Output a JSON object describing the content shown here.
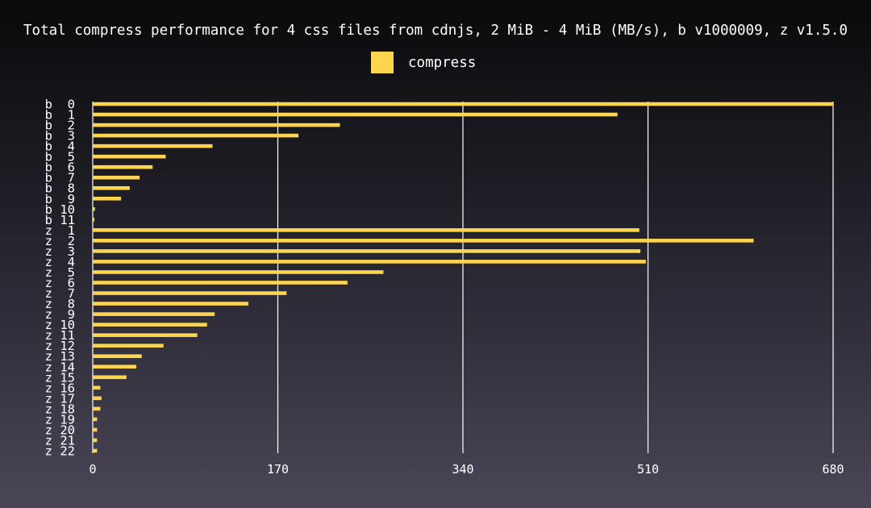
{
  "chart_data": {
    "type": "bar",
    "orientation": "horizontal",
    "title": "Total compress performance for 4 css files from cdnjs, 2 MiB - 4 MiB (MB/s), b v1000009, z v1.5.0",
    "xlabel": "",
    "ylabel": "",
    "xlim": [
      0,
      680
    ],
    "xticks": [
      "0",
      "170",
      "340",
      "510",
      "680"
    ],
    "grid": "vertical",
    "legend_position": "top-center",
    "bar_color": "#ffd54f",
    "categories": [
      "b  0",
      "b  1",
      "b  2",
      "b  3",
      "b  4",
      "b  5",
      "b  6",
      "b  7",
      "b  8",
      "b  9",
      "b 10",
      "b 11",
      "z  1",
      "z  2",
      "z  3",
      "z  4",
      "z  5",
      "z  6",
      "z  7",
      "z  8",
      "z  9",
      "z 10",
      "z 11",
      "z 12",
      "z 13",
      "z 14",
      "z 15",
      "z 16",
      "z 17",
      "z 18",
      "z 19",
      "z 20",
      "z 21",
      "z 22"
    ],
    "series": [
      {
        "name": "compress",
        "values": [
          680,
          482,
          227,
          189,
          110,
          67,
          55,
          43,
          34,
          26,
          2,
          1.5,
          502,
          607,
          503,
          508,
          267,
          234,
          178,
          143,
          112,
          105,
          96,
          65,
          45,
          40,
          31,
          7,
          8,
          7,
          4,
          4,
          4,
          4
        ]
      }
    ]
  }
}
